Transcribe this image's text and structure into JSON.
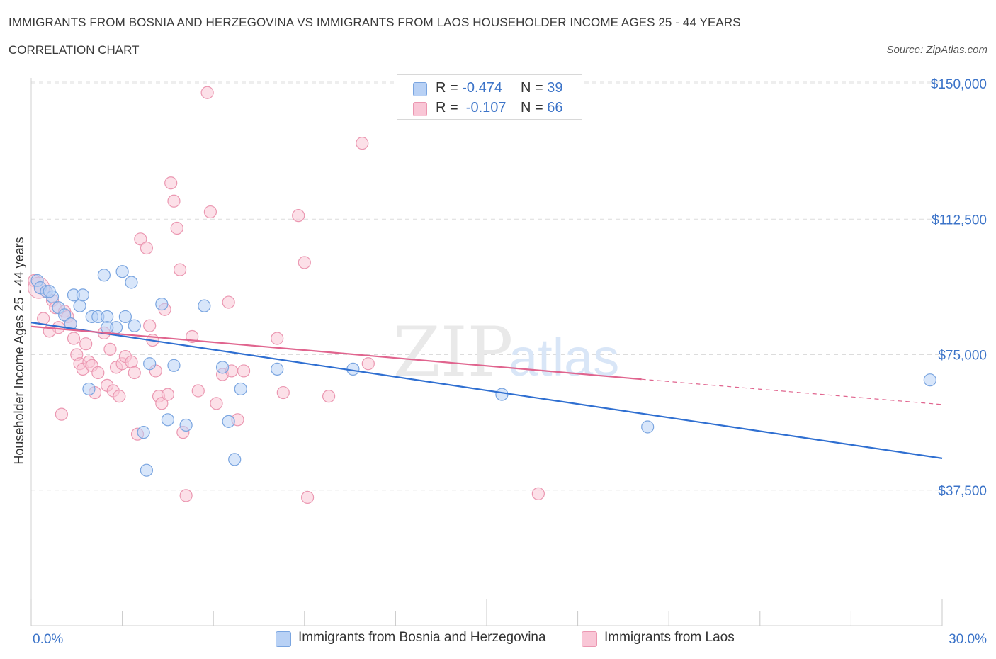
{
  "header": {
    "title": "IMMIGRANTS FROM BOSNIA AND HERZEGOVINA VS IMMIGRANTS FROM LAOS HOUSEHOLDER INCOME AGES 25 - 44 YEARS",
    "subtitle": "CORRELATION CHART",
    "source": "Source: ZipAtlas.com"
  },
  "legend_top": {
    "rows": [
      {
        "r_label": "R = ",
        "r_value": "-0.474",
        "n_label": "N = ",
        "n_value": "39"
      },
      {
        "r_label": "R = ",
        "r_value": " -0.107",
        "n_label": "N = ",
        "n_value": "66"
      }
    ]
  },
  "legend_bottom": {
    "items": [
      "Immigrants from Bosnia and Herzegovina",
      "Immigrants from Laos"
    ]
  },
  "watermark": {
    "zip": "ZIP",
    "atlas": "atlas"
  },
  "colors": {
    "blue_fill": "#b8d1f5",
    "blue_stroke": "#7aa5e0",
    "blue_line": "#2f6fd1",
    "pink_fill": "#f9c6d6",
    "pink_stroke": "#eb97b1",
    "pink_line": "#e0648e",
    "axis_text": "#3b73c8",
    "grid": "#dcdcdc"
  },
  "chart_data": {
    "type": "scatter",
    "ylabel": "Householder Income Ages 25 - 44 years",
    "xlim": [
      0,
      30
    ],
    "ylim": [
      0,
      150000
    ],
    "x_tick_labels": [
      "0.0%",
      "30.0%"
    ],
    "y_ticks": [
      37500,
      75000,
      112500,
      150000
    ],
    "y_tick_labels": [
      "$37,500",
      "$75,000",
      "$112,500",
      "$150,000"
    ],
    "grid": true,
    "series": [
      {
        "name": "Immigrants from Bosnia and Herzegovina",
        "color": "#b8d1f5",
        "points": [
          [
            0.2,
            95500
          ],
          [
            0.3,
            93500
          ],
          [
            0.5,
            92500
          ],
          [
            0.7,
            91000
          ],
          [
            0.9,
            88000
          ],
          [
            1.1,
            86000
          ],
          [
            1.3,
            83500
          ],
          [
            1.4,
            91500
          ],
          [
            1.6,
            88500
          ],
          [
            1.7,
            91500
          ],
          [
            2.0,
            85500
          ],
          [
            2.2,
            85500
          ],
          [
            2.4,
            97000
          ],
          [
            2.5,
            85500
          ],
          [
            2.8,
            82500
          ],
          [
            3.0,
            98000
          ],
          [
            3.1,
            85500
          ],
          [
            3.3,
            95000
          ],
          [
            3.4,
            83000
          ],
          [
            3.7,
            53500
          ],
          [
            3.8,
            43000
          ],
          [
            3.9,
            72500
          ],
          [
            4.3,
            89000
          ],
          [
            4.5,
            57000
          ],
          [
            4.7,
            72000
          ],
          [
            5.1,
            55500
          ],
          [
            5.7,
            88500
          ],
          [
            6.3,
            71500
          ],
          [
            6.5,
            56500
          ],
          [
            6.7,
            46000
          ],
          [
            6.9,
            65500
          ],
          [
            8.1,
            71000
          ],
          [
            10.6,
            71000
          ],
          [
            1.9,
            65500
          ],
          [
            0.6,
            92500
          ],
          [
            15.5,
            64000
          ],
          [
            20.3,
            55000
          ],
          [
            29.6,
            68000
          ],
          [
            2.5,
            82500
          ]
        ]
      },
      {
        "name": "Immigrants from Laos",
        "color": "#f9c6d6",
        "points": [
          [
            0.1,
            95500
          ],
          [
            0.3,
            93500
          ],
          [
            0.5,
            92500
          ],
          [
            0.7,
            90000
          ],
          [
            0.8,
            88000
          ],
          [
            0.9,
            82500
          ],
          [
            1.1,
            87000
          ],
          [
            1.2,
            85500
          ],
          [
            1.3,
            83500
          ],
          [
            1.4,
            79500
          ],
          [
            1.5,
            75000
          ],
          [
            1.6,
            72500
          ],
          [
            1.7,
            71000
          ],
          [
            1.8,
            78000
          ],
          [
            1.9,
            73000
          ],
          [
            2.0,
            72000
          ],
          [
            2.1,
            64500
          ],
          [
            2.2,
            70000
          ],
          [
            2.4,
            81000
          ],
          [
            2.5,
            66500
          ],
          [
            2.6,
            76500
          ],
          [
            2.7,
            65000
          ],
          [
            2.8,
            71500
          ],
          [
            2.9,
            63500
          ],
          [
            3.0,
            72500
          ],
          [
            3.1,
            74500
          ],
          [
            3.3,
            73000
          ],
          [
            3.4,
            70000
          ],
          [
            3.5,
            53000
          ],
          [
            3.6,
            107000
          ],
          [
            3.8,
            104500
          ],
          [
            3.9,
            83000
          ],
          [
            4.0,
            79000
          ],
          [
            4.1,
            70500
          ],
          [
            4.2,
            63500
          ],
          [
            4.3,
            61500
          ],
          [
            4.4,
            87500
          ],
          [
            4.5,
            64000
          ],
          [
            4.6,
            122500
          ],
          [
            4.7,
            117500
          ],
          [
            4.8,
            110000
          ],
          [
            4.9,
            98500
          ],
          [
            5.0,
            53500
          ],
          [
            5.1,
            36000
          ],
          [
            5.3,
            80000
          ],
          [
            5.5,
            65000
          ],
          [
            5.8,
            147500
          ],
          [
            5.9,
            114500
          ],
          [
            6.1,
            61500
          ],
          [
            6.3,
            69500
          ],
          [
            6.5,
            89500
          ],
          [
            6.6,
            70500
          ],
          [
            6.8,
            57000
          ],
          [
            7.0,
            70500
          ],
          [
            8.1,
            79500
          ],
          [
            8.3,
            64500
          ],
          [
            8.8,
            113500
          ],
          [
            9.0,
            100500
          ],
          [
            9.1,
            35500
          ],
          [
            9.8,
            63500
          ],
          [
            10.9,
            133500
          ],
          [
            11.1,
            72500
          ],
          [
            16.7,
            36500
          ],
          [
            0.6,
            81500
          ],
          [
            1.0,
            58500
          ],
          [
            0.4,
            85000
          ]
        ]
      }
    ],
    "trendlines": [
      {
        "series": "Immigrants from Bosnia and Herzegovina",
        "x": [
          0,
          30
        ],
        "y": [
          83900,
          46300
        ]
      },
      {
        "series": "Immigrants from Laos",
        "x": [
          0,
          20.1
        ],
        "y": [
          82800,
          68200
        ],
        "dashed_extension": {
          "x": [
            20.1,
            30
          ],
          "y": [
            68200,
            61200
          ]
        }
      }
    ]
  }
}
